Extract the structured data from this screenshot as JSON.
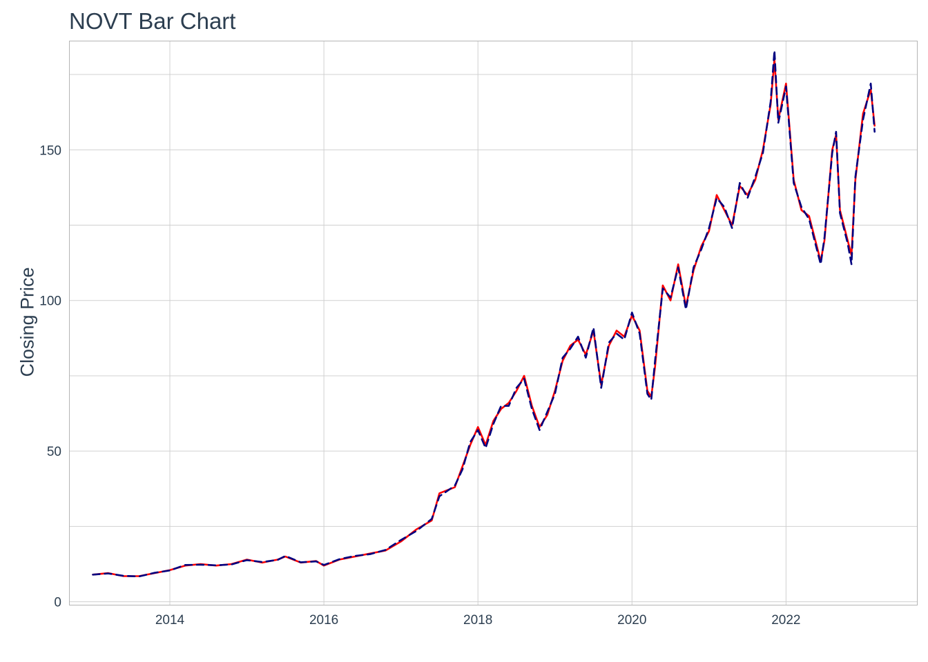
{
  "chart_data": {
    "type": "line",
    "title": "NOVT Bar Chart",
    "xlabel": "",
    "ylabel": "Closing Price",
    "xlim": [
      2012.7,
      2023.7
    ],
    "ylim": [
      -1,
      186
    ],
    "x_ticks": [
      2014,
      2016,
      2018,
      2020,
      2022
    ],
    "x_tick_labels": [
      "2014",
      "2016",
      "2018",
      "2020",
      "2022"
    ],
    "y_ticks": [
      0,
      50,
      100,
      150
    ],
    "y_tick_labels": [
      "0",
      "50",
      "100",
      "150"
    ],
    "y_minor_ticks": [
      25,
      75,
      125,
      175
    ],
    "grid": true,
    "legend": "none",
    "colors": {
      "series_a": "#ff0000",
      "series_b": "#000080",
      "grid": "#d0d0d0",
      "text": "#2c3e50"
    },
    "series": [
      {
        "color": "#ff0000",
        "x": [
          2013.0,
          2013.2,
          2013.4,
          2013.6,
          2013.8,
          2014.0,
          2014.2,
          2014.4,
          2014.6,
          2014.8,
          2015.0,
          2015.2,
          2015.4,
          2015.5,
          2015.7,
          2015.9,
          2016.0,
          2016.2,
          2016.4,
          2016.6,
          2016.8,
          2017.0,
          2017.2,
          2017.4,
          2017.5,
          2017.7,
          2017.8,
          2017.9,
          2018.0,
          2018.1,
          2018.2,
          2018.3,
          2018.4,
          2018.5,
          2018.6,
          2018.7,
          2018.8,
          2018.9,
          2019.0,
          2019.1,
          2019.2,
          2019.3,
          2019.4,
          2019.5,
          2019.6,
          2019.7,
          2019.8,
          2019.9,
          2020.0,
          2020.1,
          2020.2,
          2020.25,
          2020.3,
          2020.4,
          2020.5,
          2020.6,
          2020.7,
          2020.8,
          2020.9,
          2021.0,
          2021.1,
          2021.2,
          2021.3,
          2021.4,
          2021.5,
          2021.6,
          2021.7,
          2021.8,
          2021.85,
          2021.9,
          2022.0,
          2022.1,
          2022.2,
          2022.3,
          2022.4,
          2022.45,
          2022.5,
          2022.6,
          2022.65,
          2022.7,
          2022.8,
          2022.85,
          2022.9,
          2023.0,
          2023.1,
          2023.15
        ],
        "y": [
          9,
          9.5,
          8.5,
          8.5,
          9.5,
          10.5,
          12,
          12.5,
          12,
          12.5,
          14,
          13,
          14,
          15,
          13,
          13.5,
          12,
          14,
          15,
          16,
          17,
          20,
          24,
          27,
          36,
          38,
          45,
          52,
          58,
          52,
          60,
          64,
          66,
          70,
          75,
          65,
          58,
          62,
          70,
          80,
          85,
          87,
          82,
          90,
          72,
          85,
          90,
          88,
          95,
          90,
          70,
          68,
          78,
          105,
          100,
          112,
          98,
          110,
          118,
          123,
          135,
          130,
          125,
          138,
          135,
          140,
          150,
          165,
          180,
          160,
          172,
          140,
          130,
          128,
          118,
          113,
          120,
          150,
          155,
          130,
          120,
          115,
          140,
          162,
          170,
          158
        ]
      },
      {
        "color": "#000080",
        "x": [
          2013.0,
          2013.2,
          2013.4,
          2013.6,
          2013.8,
          2014.0,
          2014.2,
          2014.4,
          2014.6,
          2014.8,
          2015.0,
          2015.2,
          2015.4,
          2015.5,
          2015.7,
          2015.9,
          2016.0,
          2016.2,
          2016.4,
          2016.6,
          2016.8,
          2017.0,
          2017.2,
          2017.4,
          2017.5,
          2017.7,
          2017.8,
          2017.9,
          2018.0,
          2018.1,
          2018.2,
          2018.3,
          2018.4,
          2018.5,
          2018.6,
          2018.7,
          2018.8,
          2018.9,
          2019.0,
          2019.1,
          2019.2,
          2019.3,
          2019.4,
          2019.5,
          2019.6,
          2019.7,
          2019.8,
          2019.9,
          2020.0,
          2020.1,
          2020.2,
          2020.25,
          2020.3,
          2020.4,
          2020.5,
          2020.6,
          2020.7,
          2020.8,
          2020.9,
          2021.0,
          2021.1,
          2021.2,
          2021.3,
          2021.4,
          2021.5,
          2021.6,
          2021.7,
          2021.8,
          2021.85,
          2021.9,
          2022.0,
          2022.1,
          2022.2,
          2022.3,
          2022.4,
          2022.45,
          2022.5,
          2022.6,
          2022.65,
          2022.7,
          2022.8,
          2022.85,
          2022.9,
          2023.0,
          2023.1,
          2023.15
        ],
        "y": [
          9,
          9.4,
          8.6,
          8.4,
          9.6,
          10.4,
          12.2,
          12.3,
          12.1,
          12.4,
          13.8,
          13.2,
          13.9,
          15.2,
          13.1,
          13.4,
          12.2,
          14.1,
          15.2,
          15.8,
          17.2,
          20.5,
          23.5,
          27.5,
          35,
          38.5,
          44,
          53,
          57,
          51,
          59,
          65,
          65,
          71,
          74,
          64,
          57,
          63,
          69,
          81,
          84,
          88,
          81,
          91,
          71,
          86,
          89,
          87,
          96,
          89,
          69,
          67,
          80,
          104,
          101,
          111,
          97,
          111,
          117,
          124,
          134,
          131,
          124,
          139,
          134,
          141,
          149,
          166,
          183,
          159,
          171,
          139,
          131,
          127,
          117,
          112,
          121,
          149,
          156,
          129,
          119,
          112,
          141,
          160,
          172,
          156
        ]
      }
    ]
  }
}
